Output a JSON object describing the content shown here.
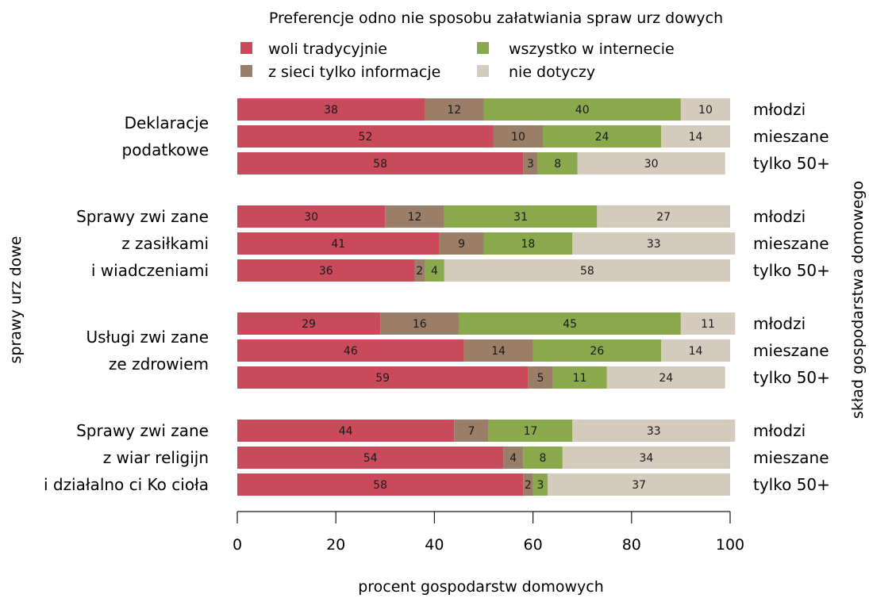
{
  "chart_data": {
    "type": "bar",
    "orientation": "horizontal",
    "stacked": true,
    "title": "Preferencje odno nie sposobu załatwiania spraw urz dowych",
    "xlabel": "procent gospodarstw domowych",
    "ylabel": "sprawy urz dowe",
    "y2label": "skład gospodarstwa domowego",
    "xlim": [
      0,
      100
    ],
    "xticks": [
      "0",
      "20",
      "40",
      "60",
      "80",
      "100"
    ],
    "grid": false,
    "legend_position": "top",
    "series": [
      {
        "name": "woli tradycyjnie",
        "color": "#c94a5a"
      },
      {
        "name": "z sieci tylko informacje",
        "color": "#9a7e68"
      },
      {
        "name": "wszystko w internecie",
        "color": "#8aa84c"
      },
      {
        "name": "nie dotyczy",
        "color": "#d4cbbd"
      }
    ],
    "groups": [
      {
        "label_lines": [
          "Deklaracje",
          "podatkowe"
        ],
        "rows": [
          {
            "category": "młodzi",
            "values": [
              38,
              12,
              40,
              10
            ]
          },
          {
            "category": "mieszane",
            "values": [
              52,
              10,
              24,
              14
            ]
          },
          {
            "category": "tylko 50+",
            "values": [
              58,
              3,
              8,
              30
            ]
          }
        ]
      },
      {
        "label_lines": [
          "Sprawy zwi zane",
          "z zasiłkami",
          "i wiadczeniami"
        ],
        "rows": [
          {
            "category": "młodzi",
            "values": [
              30,
              12,
              31,
              27
            ]
          },
          {
            "category": "mieszane",
            "values": [
              41,
              9,
              18,
              33
            ]
          },
          {
            "category": "tylko 50+",
            "values": [
              36,
              2,
              4,
              58
            ]
          }
        ]
      },
      {
        "label_lines": [
          "Usługi zwi zane",
          "ze zdrowiem"
        ],
        "rows": [
          {
            "category": "młodzi",
            "values": [
              29,
              16,
              45,
              11
            ]
          },
          {
            "category": "mieszane",
            "values": [
              46,
              14,
              26,
              14
            ]
          },
          {
            "category": "tylko 50+",
            "values": [
              59,
              5,
              11,
              24
            ]
          }
        ]
      },
      {
        "label_lines": [
          "Sprawy zwi zane",
          "z wiar religijn",
          "i działalno ci Ko cioła"
        ],
        "rows": [
          {
            "category": "młodzi",
            "values": [
              44,
              7,
              17,
              33
            ]
          },
          {
            "category": "mieszane",
            "values": [
              54,
              4,
              8,
              34
            ]
          },
          {
            "category": "tylko 50+",
            "values": [
              58,
              2,
              3,
              37
            ]
          }
        ]
      }
    ]
  }
}
